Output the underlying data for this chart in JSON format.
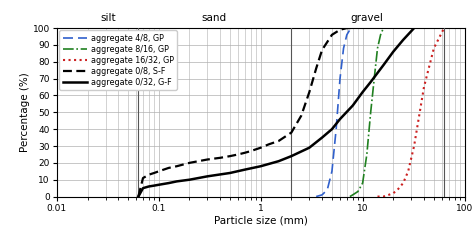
{
  "xlabel": "Particle size (mm)",
  "ylabel": "Percentage (%)",
  "xlim": [
    0.01,
    100
  ],
  "ylim": [
    0,
    100
  ],
  "silt_label": "silt",
  "sand_label": "sand",
  "gravel_label": "gravel",
  "zone_lines": [
    0.063,
    2.0,
    63.0
  ],
  "background_color": "#ffffff",
  "grid_color": "#b0b0b0",
  "curves": [
    {
      "label": "aggregate 4/8, GP",
      "color": "#3060cc",
      "linestyle": "--",
      "x": [
        3.5,
        4.0,
        4.5,
        5.0,
        5.5,
        6.0,
        6.5,
        7.0,
        7.5,
        8.0
      ],
      "y": [
        0,
        1,
        4,
        15,
        40,
        70,
        88,
        96,
        99,
        100
      ]
    },
    {
      "label": "aggregate 8/16, GP",
      "color": "#208020",
      "linestyle": "-.",
      "x": [
        7.5,
        8.0,
        9.0,
        10.0,
        11.0,
        12.0,
        13.0,
        14.0,
        15.0,
        16.0
      ],
      "y": [
        0,
        1,
        3,
        8,
        25,
        50,
        70,
        88,
        96,
        100
      ]
    },
    {
      "label": "aggregate 16/32, GP",
      "color": "#cc2020",
      "linestyle": ":",
      "x": [
        14.0,
        16.0,
        18.0,
        20.0,
        22.0,
        25.0,
        28.0,
        32.0,
        40.0,
        50.0,
        63.0
      ],
      "y": [
        0,
        0,
        1,
        2,
        4,
        8,
        15,
        30,
        65,
        88,
        100
      ]
    },
    {
      "label": "aggregate 0/8, S-F",
      "color": "#000000",
      "linestyle": "--",
      "x": [
        0.063,
        0.07,
        0.08,
        0.09,
        0.1,
        0.125,
        0.15,
        0.2,
        0.3,
        0.4,
        0.5,
        0.6,
        0.7,
        0.8,
        1.0,
        1.2,
        1.5,
        2.0,
        2.5,
        3.0,
        3.5,
        4.0,
        5.0,
        6.0,
        7.0,
        8.0
      ],
      "y": [
        0,
        11,
        13,
        14,
        15,
        17,
        18,
        20,
        22,
        23,
        24,
        25,
        26,
        27,
        29,
        31,
        33,
        38,
        48,
        62,
        76,
        87,
        96,
        99,
        100,
        100
      ]
    },
    {
      "label": "aggregate 0/32, G-F",
      "color": "#000000",
      "linestyle": "-",
      "x": [
        0.063,
        0.07,
        0.08,
        0.09,
        0.1,
        0.125,
        0.15,
        0.2,
        0.3,
        0.5,
        0.7,
        1.0,
        1.5,
        2.0,
        3.0,
        4.0,
        5.0,
        6.0,
        8.0,
        10.0,
        12.0,
        16.0,
        20.0,
        25.0,
        32.0
      ],
      "y": [
        0,
        5,
        6,
        6.5,
        7,
        8,
        9,
        10,
        12,
        14,
        16,
        18,
        21,
        24,
        29,
        35,
        40,
        46,
        54,
        62,
        68,
        78,
        86,
        93,
        100
      ]
    }
  ],
  "legend_fontsize": 5.8,
  "tick_fontsize": 6.5,
  "label_fontsize": 7.5,
  "zone_label_fontsize": 7.5
}
